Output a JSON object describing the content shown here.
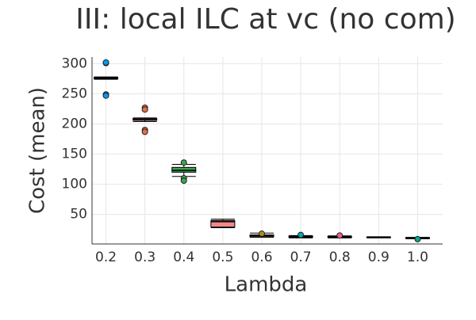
{
  "chart_data": {
    "type": "box",
    "title": "III: local ILC at vc (no com)",
    "x_label": "Lambda",
    "y_label": "Cost (mean)",
    "categories": [
      "0.2",
      "0.3",
      "0.4",
      "0.5",
      "0.6",
      "0.7",
      "0.8",
      "0.9",
      "1.0"
    ],
    "ylim": [
      1,
      311
    ],
    "yticks": [
      50,
      100,
      150,
      200,
      250,
      300
    ],
    "grid": true,
    "boxes": [
      {
        "color": "#009afa",
        "whislo": 274,
        "q1": 275,
        "median": 276,
        "q3": 277,
        "whishi": 278,
        "outliers": [
          301,
          302,
          249,
          247
        ]
      },
      {
        "color": "#e36f47",
        "whislo": 204,
        "q1": 206,
        "median": 207,
        "q3": 209,
        "whishi": 210,
        "outliers": [
          227,
          224,
          190,
          187
        ]
      },
      {
        "color": "#3ea44e",
        "whislo": 113,
        "q1": 120,
        "median": 123,
        "q3": 128,
        "whishi": 133,
        "outliers": [
          136,
          110,
          106
        ]
      },
      {
        "color": "#f08a8a",
        "whislo": 28,
        "q1": 29,
        "median": 38,
        "q3": 40,
        "whishi": 42,
        "outliers": []
      },
      {
        "color": "#ac8e18",
        "whislo": 12,
        "q1": 13,
        "median": 15,
        "q3": 16,
        "whishi": 19,
        "outliers": [
          18
        ]
      },
      {
        "color": "#00aaae",
        "whislo": 11,
        "q1": 12,
        "median": 13,
        "q3": 14,
        "whishi": 15,
        "outliers": [
          16
        ]
      },
      {
        "color": "#ed5e93",
        "whislo": 11,
        "q1": 12,
        "median": 13,
        "q3": 13.5,
        "whishi": 14.5,
        "outliers": [
          15
        ]
      },
      {
        "color": "#c68225",
        "whislo": 11,
        "q1": 11.5,
        "median": 12,
        "q3": 12.5,
        "whishi": 13,
        "outliers": []
      },
      {
        "color": "#00a98d",
        "whislo": 9.5,
        "q1": 10,
        "median": 11,
        "q3": 11.5,
        "whishi": 12,
        "outliers": [
          9
        ]
      }
    ]
  }
}
